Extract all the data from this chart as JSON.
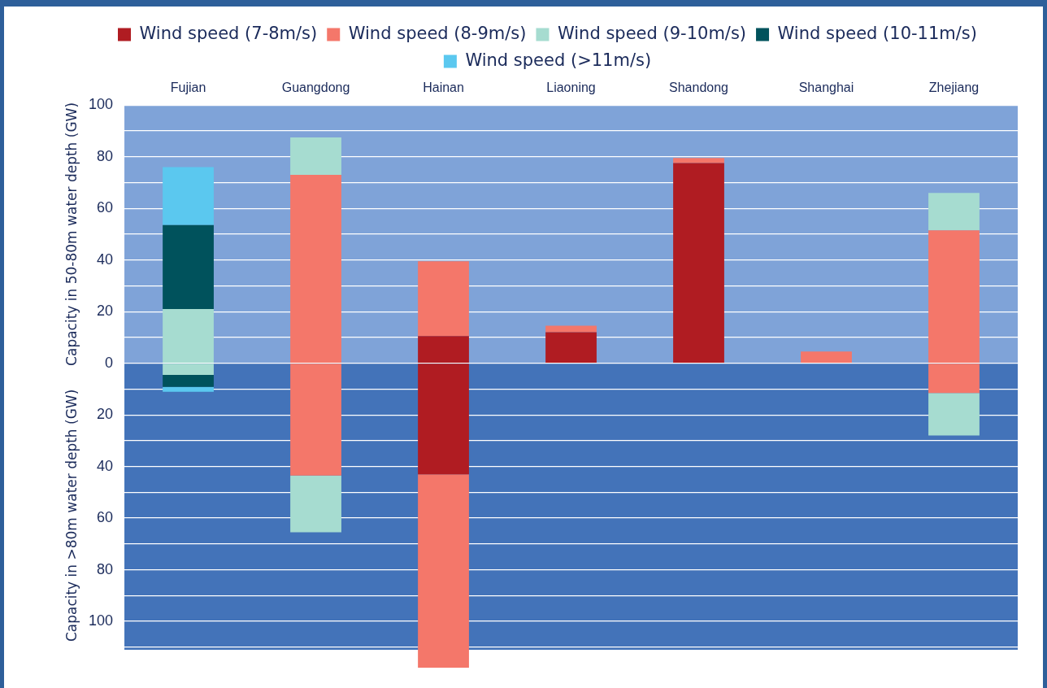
{
  "chart_data": {
    "type": "bar",
    "stacked": true,
    "ylabel": "Capacity in 50-80m water depth (GW)",
    "annotations": [
      "Capacity in >80m water depth (GW)"
    ],
    "categories": [
      "Fujian",
      "Guangdong",
      "Hainan",
      "Liaoning",
      "Shandong",
      "Shanghai",
      "Zhejiang"
    ],
    "series": [
      {
        "name": "Wind speed (7-8m/s)",
        "color": "#b01c22",
        "values": [
          null,
          null,
          10.5,
          12,
          77.5,
          null,
          null
        ]
      },
      {
        "name": "Wind speed (8-9m/s)",
        "color": "#f4776a",
        "values": [
          null,
          73,
          29,
          2.5,
          2,
          4.5,
          51.5
        ]
      },
      {
        "name": "Wind speed (9-10m/s)",
        "color": "#a6dcd0",
        "values": [
          21,
          14.5,
          null,
          null,
          null,
          null,
          14.5
        ]
      },
      {
        "name": "Wind speed (10-11m/s)",
        "color": "#00525c",
        "values": [
          32.5,
          null,
          null,
          null,
          null,
          null,
          null
        ]
      },
      {
        "name": "Wind speed (>11m/s)",
        "color": "#5bc8ef",
        "values": [
          22.5,
          null,
          null,
          null,
          null,
          null,
          null
        ]
      },
      {
        "color": "#b01c22",
        "values": [
          null,
          null,
          -43,
          null,
          null,
          null,
          null
        ]
      },
      {
        "color": "#f4776a",
        "values": [
          null,
          -43.5,
          -75,
          null,
          null,
          null,
          -11.5
        ]
      },
      {
        "color": "#a6dcd0",
        "values": [
          -4.5,
          -22,
          null,
          null,
          null,
          null,
          -16.5
        ]
      },
      {
        "color": "#00525c",
        "values": [
          -4.7,
          null,
          null,
          null,
          null,
          null,
          null
        ]
      },
      {
        "color": "#5bc8ef",
        "values": [
          -1.9,
          null,
          null,
          null,
          null,
          null,
          null
        ]
      }
    ],
    "ylim": [
      -118,
      100
    ],
    "yticks": [
      {
        "value": -110,
        "label": null
      },
      {
        "value": -100,
        "label": "100"
      },
      {
        "value": -90,
        "label": null
      },
      {
        "value": -80,
        "label": "80"
      },
      {
        "value": -70,
        "label": null
      },
      {
        "value": -60,
        "label": "60"
      },
      {
        "value": -50,
        "label": null
      },
      {
        "value": -40,
        "label": "40"
      },
      {
        "value": -30,
        "label": null
      },
      {
        "value": -20,
        "label": "20"
      },
      {
        "value": -10,
        "label": null
      },
      0,
      {
        "value": 10,
        "label": null
      },
      20,
      {
        "value": 30,
        "label": null
      },
      40,
      {
        "value": 50,
        "label": null
      },
      60,
      {
        "value": 70,
        "label": null
      },
      80,
      {
        "value": 90,
        "label": null
      },
      100
    ],
    "bands": [
      {
        "axis": "y",
        "from": 0,
        "to": 100,
        "color": "#7fa3d8"
      },
      {
        "axis": "y",
        "from": -111,
        "to": 0,
        "color": "#4373b9"
      }
    ],
    "grid": "y",
    "legend": "top"
  }
}
